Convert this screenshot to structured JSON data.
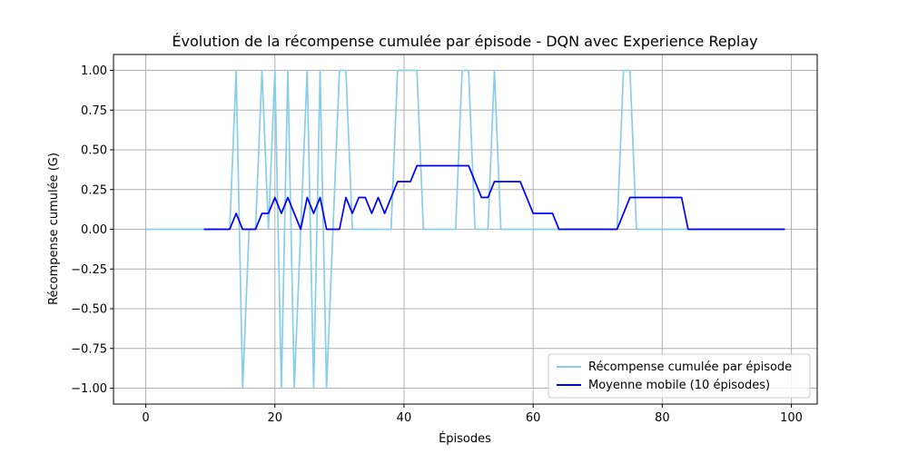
{
  "chart_data": {
    "type": "line",
    "title": "Évolution de la récompense cumulée par épisode - DQN avec Experience Replay",
    "xlabel": "Épisodes",
    "ylabel": "Récompense cumulée (G)",
    "xlim": [
      -5,
      104
    ],
    "ylim": [
      -1.1,
      1.1
    ],
    "xticks": [
      0,
      20,
      40,
      60,
      80,
      100
    ],
    "yticks": [
      -1.0,
      -0.75,
      -0.5,
      -0.25,
      0.0,
      0.25,
      0.5,
      0.75,
      1.0
    ],
    "xtick_labels": [
      "0",
      "20",
      "40",
      "60",
      "80",
      "100"
    ],
    "ytick_labels": [
      "−1.00",
      "−0.75",
      "−0.50",
      "−0.25",
      "0.00",
      "0.25",
      "0.50",
      "0.75",
      "1.00"
    ],
    "grid": true,
    "legend_position": "bottom-right",
    "series": [
      {
        "name": "Récompense cumulée par épisode",
        "color": "#87ceeb",
        "x_start": 0,
        "values": [
          0,
          0,
          0,
          0,
          0,
          0,
          0,
          0,
          0,
          0,
          0,
          0,
          0,
          0,
          1,
          -1,
          0,
          0,
          1,
          0,
          1,
          -1,
          1,
          -1,
          0,
          1,
          -1,
          1,
          -1,
          0,
          1,
          1,
          0,
          0,
          0,
          0,
          0,
          0,
          0,
          1,
          1,
          1,
          1,
          0,
          0,
          0,
          0,
          0,
          0,
          1,
          1,
          0,
          0,
          0,
          1,
          0,
          0,
          0,
          0,
          0,
          0,
          0,
          0,
          0,
          0,
          0,
          0,
          0,
          0,
          0,
          0,
          0,
          0,
          0,
          1,
          1,
          0,
          0,
          0,
          0,
          0,
          0,
          0,
          0,
          0,
          0,
          0,
          0,
          0,
          0,
          0,
          0,
          0,
          0,
          0,
          0,
          0,
          0,
          0,
          0
        ]
      },
      {
        "name": "Moyenne mobile (10 épisodes)",
        "color": "#0000ff",
        "x_start": 9,
        "values": [
          0,
          0,
          0,
          0,
          0,
          0.1,
          0,
          0,
          0,
          0.1,
          0.1,
          0.2,
          0.1,
          0.2,
          0.1,
          0,
          0.2,
          0.1,
          0.2,
          0,
          0,
          0,
          0.2,
          0.1,
          0.2,
          0.2,
          0.1,
          0.2,
          0.1,
          0.2,
          0.3,
          0.3,
          0.3,
          0.4,
          0.4,
          0.4,
          0.4,
          0.4,
          0.4,
          0.4,
          0.4,
          0.4,
          0.3,
          0.2,
          0.2,
          0.3,
          0.3,
          0.3,
          0.3,
          0.3,
          0.2,
          0.1,
          0.1,
          0.1,
          0.1,
          0,
          0,
          0,
          0,
          0,
          0,
          0,
          0,
          0,
          0,
          0.1,
          0.2,
          0.2,
          0.2,
          0.2,
          0.2,
          0.2,
          0.2,
          0.2,
          0.2,
          0,
          0,
          0,
          0,
          0,
          0,
          0,
          0,
          0,
          0,
          0,
          0,
          0,
          0,
          0,
          0
        ]
      }
    ]
  }
}
